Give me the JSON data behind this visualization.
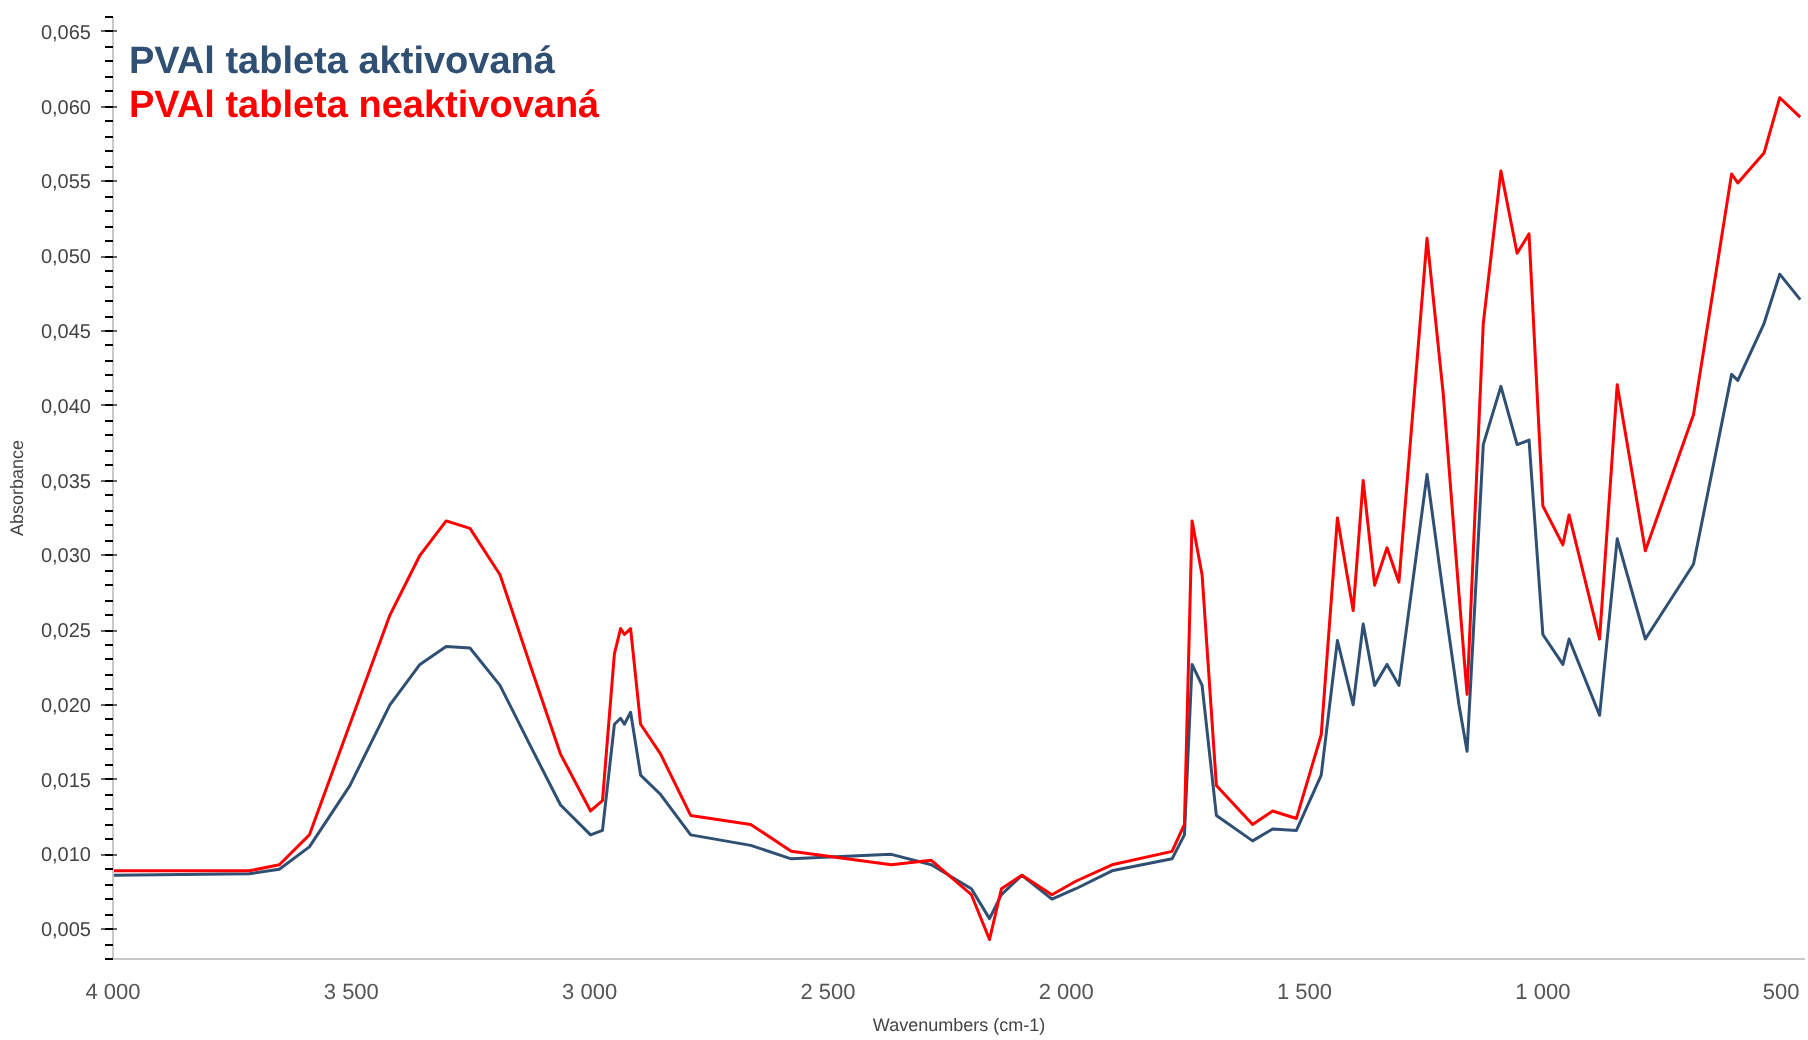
{
  "chart_data": {
    "type": "line",
    "xlabel": "Wavenumbers (cm-1)",
    "ylabel": "Absorbance",
    "x": [
      4000,
      3714,
      3651,
      3588,
      3503,
      3419,
      3356,
      3301,
      3251,
      3188,
      3125,
      3061,
      2998,
      2973,
      2948,
      2935,
      2927,
      2914,
      2893,
      2851,
      2788,
      2662,
      2577,
      2367,
      2283,
      2199,
      2161,
      2136,
      2093,
      2030,
      1980,
      1904,
      1778,
      1752,
      1736,
      1715,
      1685,
      1609,
      1567,
      1517,
      1465,
      1431,
      1398,
      1377,
      1353,
      1327,
      1302,
      1243,
      1209,
      1176,
      1159,
      1125,
      1088,
      1054,
      1029,
      1000,
      958,
      945,
      881,
      844,
      785,
      684,
      604,
      591,
      536,
      503,
      460
    ],
    "series": [
      {
        "name": "PVAl tableta aktivovaná",
        "color": "#2f4f73",
        "values": [
          0.0086,
          0.0087,
          0.009,
          0.0105,
          0.0146,
          0.02,
          0.0227,
          0.0239,
          0.0238,
          0.0213,
          0.0173,
          0.0133,
          0.0113,
          0.0116,
          0.0187,
          0.0191,
          0.0187,
          0.0195,
          0.0153,
          0.014,
          0.0113,
          0.0106,
          0.0097,
          0.01,
          0.0093,
          0.0077,
          0.0057,
          0.0073,
          0.0086,
          0.007,
          0.0077,
          0.0089,
          0.0097,
          0.0113,
          0.0227,
          0.0213,
          0.0126,
          0.0109,
          0.0117,
          0.0116,
          0.0153,
          0.0243,
          0.02,
          0.0254,
          0.0213,
          0.0227,
          0.0213,
          0.0354,
          0.0274,
          0.02,
          0.0169,
          0.0374,
          0.0413,
          0.0374,
          0.0377,
          0.0247,
          0.0227,
          0.0244,
          0.0193,
          0.0311,
          0.0244,
          0.0294,
          0.0421,
          0.0417,
          0.0455,
          0.0488,
          0.0471
        ]
      },
      {
        "name": "PVAl tableta neaktivovaná",
        "color": "#ff0000",
        "values": [
          0.0089,
          0.0089,
          0.0093,
          0.0113,
          0.0187,
          0.026,
          0.03,
          0.0323,
          0.0318,
          0.0287,
          0.0227,
          0.0167,
          0.0129,
          0.0136,
          0.0234,
          0.0251,
          0.0247,
          0.0251,
          0.0187,
          0.0167,
          0.0126,
          0.012,
          0.0102,
          0.0093,
          0.0096,
          0.0073,
          0.0043,
          0.0077,
          0.0086,
          0.0073,
          0.0082,
          0.0093,
          0.0102,
          0.012,
          0.0323,
          0.0287,
          0.0146,
          0.012,
          0.0129,
          0.0124,
          0.018,
          0.0325,
          0.0263,
          0.035,
          0.028,
          0.0305,
          0.0282,
          0.0512,
          0.0408,
          0.0274,
          0.0207,
          0.0455,
          0.0557,
          0.0502,
          0.0515,
          0.0333,
          0.0307,
          0.0327,
          0.0244,
          0.0414,
          0.0303,
          0.0394,
          0.0555,
          0.0549,
          0.0569,
          0.0606,
          0.0593
        ]
      }
    ],
    "xlim": [
      4000,
      450
    ],
    "ylim": [
      0.003,
      0.066
    ],
    "xticks": [
      {
        "value": 4000,
        "label": "4 000"
      },
      {
        "value": 3500,
        "label": "3 500"
      },
      {
        "value": 3000,
        "label": "3 000"
      },
      {
        "value": 2500,
        "label": "2 500"
      },
      {
        "value": 2000,
        "label": "2 000"
      },
      {
        "value": 1500,
        "label": "1 500"
      },
      {
        "value": 1000,
        "label": "1 000"
      },
      500
    ],
    "yticks": [
      {
        "value": 0.005,
        "label": "0,005"
      },
      {
        "value": 0.01,
        "label": "0,010"
      },
      {
        "value": 0.015,
        "label": "0,015"
      },
      {
        "value": 0.02,
        "label": "0,020"
      },
      {
        "value": 0.025,
        "label": "0,025"
      },
      {
        "value": 0.03,
        "label": "0,030"
      },
      {
        "value": 0.035,
        "label": "0,035"
      },
      {
        "value": 0.04,
        "label": "0,040"
      },
      {
        "value": 0.045,
        "label": "0,045"
      },
      {
        "value": 0.05,
        "label": "0,050"
      },
      {
        "value": 0.055,
        "label": "0,055"
      },
      {
        "value": 0.06,
        "label": "0,060"
      },
      {
        "value": 0.065,
        "label": "0,065"
      }
    ],
    "grid": false,
    "line_style": "solid",
    "marker": "none"
  }
}
